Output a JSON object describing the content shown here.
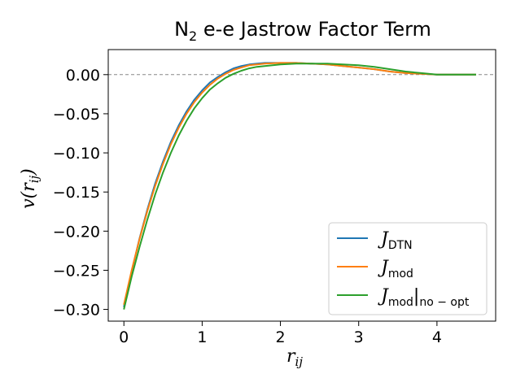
{
  "chart_data": {
    "type": "line",
    "title": "N",
    "title_sub": "2",
    "title_rest": " e-e Jastrow Factor Term",
    "xlabel": "r",
    "xlabel_sub": "ij",
    "ylabel": "v(r",
    "ylabel_sub": "ij",
    "ylabel_close": ")",
    "xlim": [
      -0.2,
      4.75
    ],
    "ylim": [
      -0.315,
      0.032
    ],
    "xticks": [
      0,
      1,
      2,
      3,
      4
    ],
    "xtick_labels": [
      "0",
      "1",
      "2",
      "3",
      "4"
    ],
    "yticks": [
      0.0,
      -0.05,
      -0.1,
      -0.15,
      -0.2,
      -0.25,
      -0.3
    ],
    "ytick_labels": [
      "0.00",
      "−0.05",
      "−0.10",
      "−0.15",
      "−0.20",
      "−0.25",
      "−0.30"
    ],
    "reference_line_y": 0.0,
    "grid": false,
    "legend_position": "lower right",
    "series": [
      {
        "name": "J",
        "name_sub": "DTN",
        "color": "#1f77b4",
        "x": [
          0.0,
          0.1,
          0.2,
          0.3,
          0.4,
          0.5,
          0.6,
          0.7,
          0.8,
          0.9,
          1.0,
          1.1,
          1.2,
          1.3,
          1.4,
          1.5,
          1.6,
          1.7,
          1.8,
          2.0,
          2.2,
          2.4,
          2.6,
          2.8,
          3.0,
          3.2,
          3.4,
          3.6,
          3.8,
          4.0,
          4.2,
          4.5
        ],
        "y": [
          -0.297,
          -0.251,
          -0.209,
          -0.172,
          -0.139,
          -0.111,
          -0.086,
          -0.065,
          -0.047,
          -0.032,
          -0.02,
          -0.01,
          -0.003,
          0.003,
          0.008,
          0.011,
          0.013,
          0.014,
          0.015,
          0.015,
          0.015,
          0.014,
          0.013,
          0.011,
          0.009,
          0.007,
          0.004,
          0.002,
          0.001,
          0.0,
          0.0,
          0.0
        ]
      },
      {
        "name": "J",
        "name_sub": "mod",
        "color": "#ff7f0e",
        "x": [
          0.0,
          0.1,
          0.2,
          0.3,
          0.4,
          0.5,
          0.6,
          0.7,
          0.8,
          0.9,
          1.0,
          1.1,
          1.2,
          1.3,
          1.4,
          1.5,
          1.6,
          1.7,
          1.8,
          2.0,
          2.2,
          2.4,
          2.6,
          2.8,
          3.0,
          3.2,
          3.4,
          3.6,
          3.8,
          4.0,
          4.2,
          4.5
        ],
        "y": [
          -0.294,
          -0.25,
          -0.21,
          -0.174,
          -0.142,
          -0.114,
          -0.089,
          -0.068,
          -0.05,
          -0.035,
          -0.023,
          -0.013,
          -0.005,
          0.001,
          0.006,
          0.009,
          0.012,
          0.013,
          0.014,
          0.015,
          0.015,
          0.014,
          0.013,
          0.011,
          0.009,
          0.007,
          0.004,
          0.002,
          0.001,
          0.0,
          0.0,
          0.0
        ]
      },
      {
        "name": "J",
        "name_sub": "mod",
        "name_tail": "|",
        "name_tail_sub": "no − opt",
        "color": "#2ca02c",
        "x": [
          0.0,
          0.1,
          0.2,
          0.3,
          0.4,
          0.5,
          0.6,
          0.7,
          0.8,
          0.9,
          1.0,
          1.1,
          1.2,
          1.3,
          1.4,
          1.5,
          1.6,
          1.7,
          1.8,
          2.0,
          2.2,
          2.4,
          2.6,
          2.8,
          3.0,
          3.2,
          3.4,
          3.6,
          3.8,
          4.0,
          4.2,
          4.5
        ],
        "y": [
          -0.3,
          -0.258,
          -0.22,
          -0.185,
          -0.153,
          -0.125,
          -0.1,
          -0.078,
          -0.059,
          -0.043,
          -0.03,
          -0.019,
          -0.011,
          -0.004,
          0.001,
          0.005,
          0.008,
          0.01,
          0.011,
          0.013,
          0.014,
          0.014,
          0.014,
          0.013,
          0.012,
          0.01,
          0.007,
          0.004,
          0.002,
          0.0,
          0.0,
          0.0
        ]
      }
    ]
  }
}
